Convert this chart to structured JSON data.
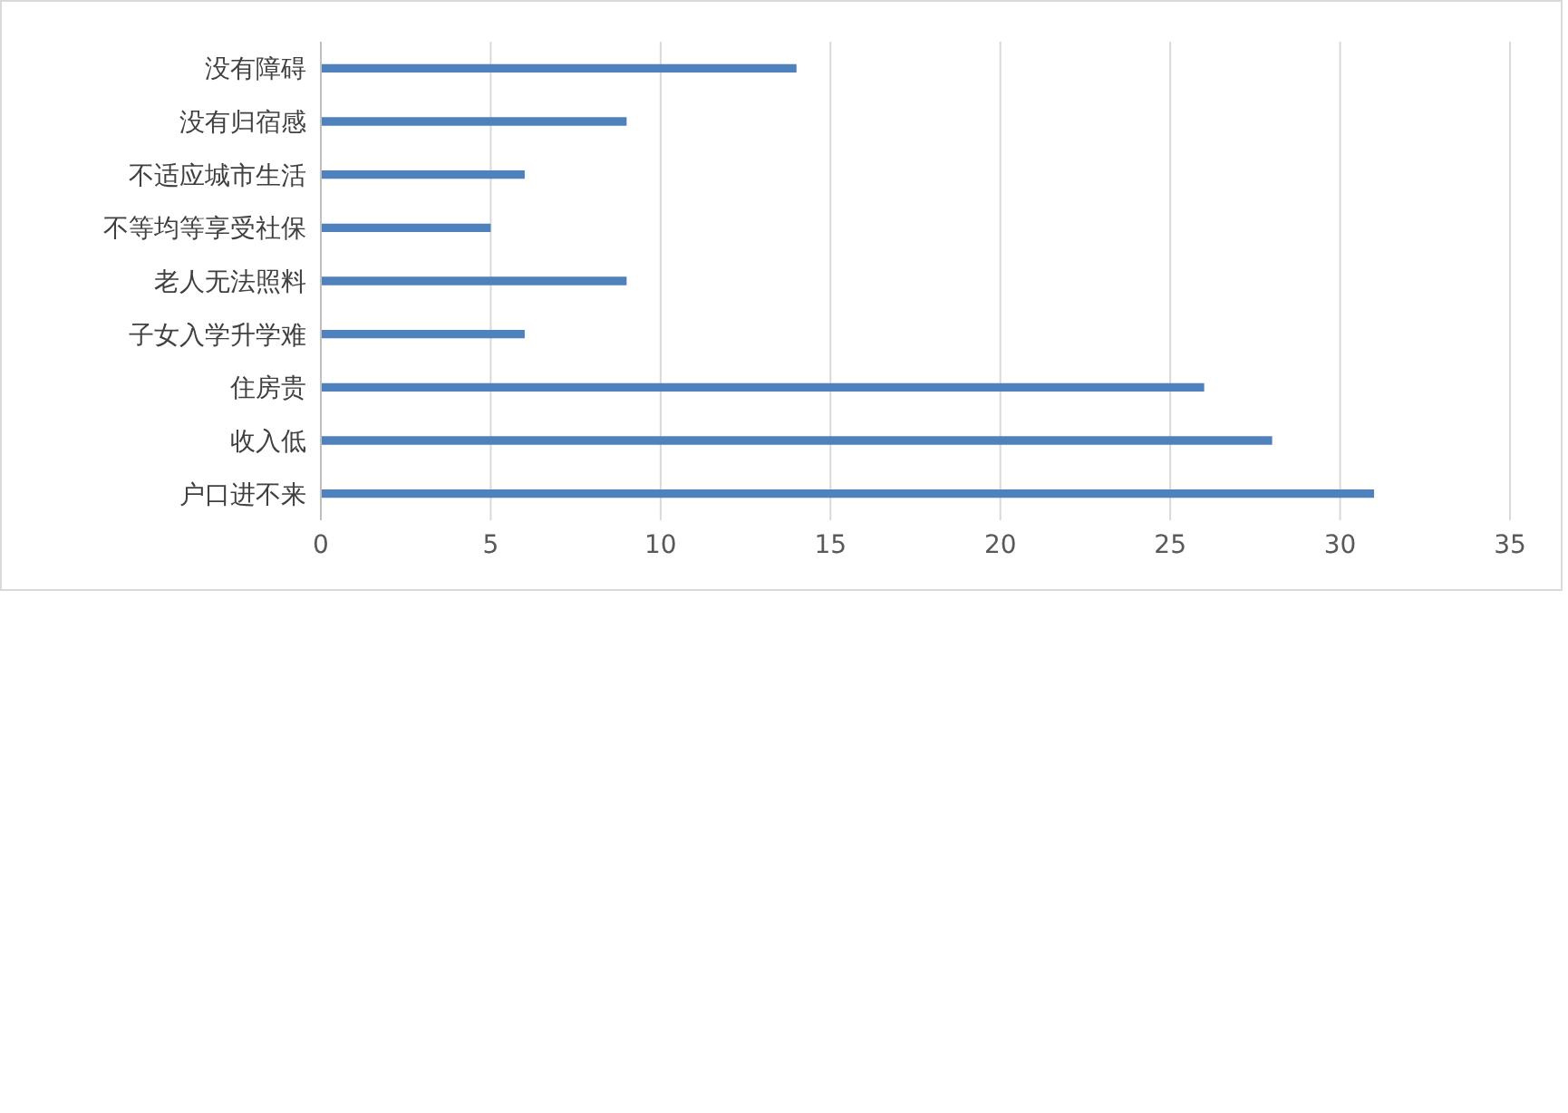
{
  "chart_data": {
    "type": "bar",
    "orientation": "horizontal",
    "categories": [
      "没有障碍",
      "没有归宿感",
      "不适应城市生活",
      "不等均等享受社保",
      "老人无法照料",
      "子女入学升学难",
      "住房贵",
      "收入低",
      "户口进不来"
    ],
    "values": [
      14,
      9,
      6,
      5,
      9,
      6,
      26,
      28,
      31
    ],
    "color": "#4f81bd",
    "xlim": [
      0,
      35
    ],
    "xticks": [
      0,
      5,
      10,
      15,
      20,
      25,
      30,
      35
    ],
    "grid": "x"
  }
}
